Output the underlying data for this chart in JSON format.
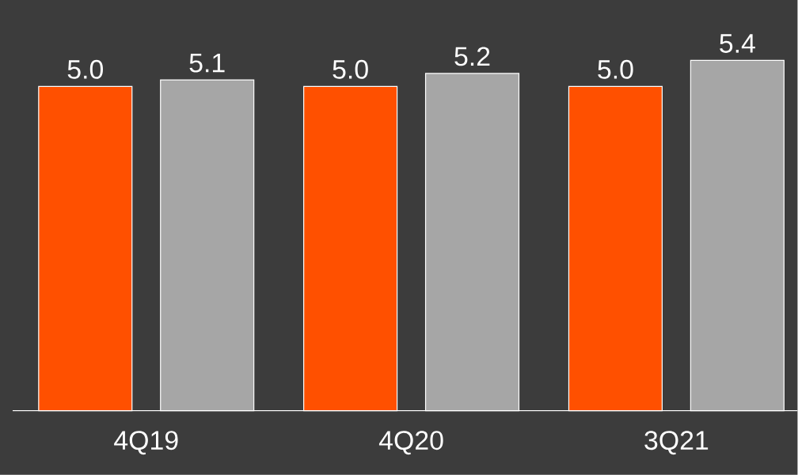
{
  "chart_data": {
    "type": "bar",
    "categories": [
      "4Q19",
      "4Q20",
      "3Q21"
    ],
    "series": [
      {
        "color": "#ff5000",
        "values": [
          5.0,
          5.0,
          5.0
        ],
        "value_labels": [
          "5.0",
          "5.0",
          "5.0"
        ]
      },
      {
        "color": "#a6a6a6",
        "values": [
          5.1,
          5.2,
          5.4
        ],
        "value_labels": [
          "5.1",
          "5.2",
          "5.4"
        ]
      }
    ]
  }
}
